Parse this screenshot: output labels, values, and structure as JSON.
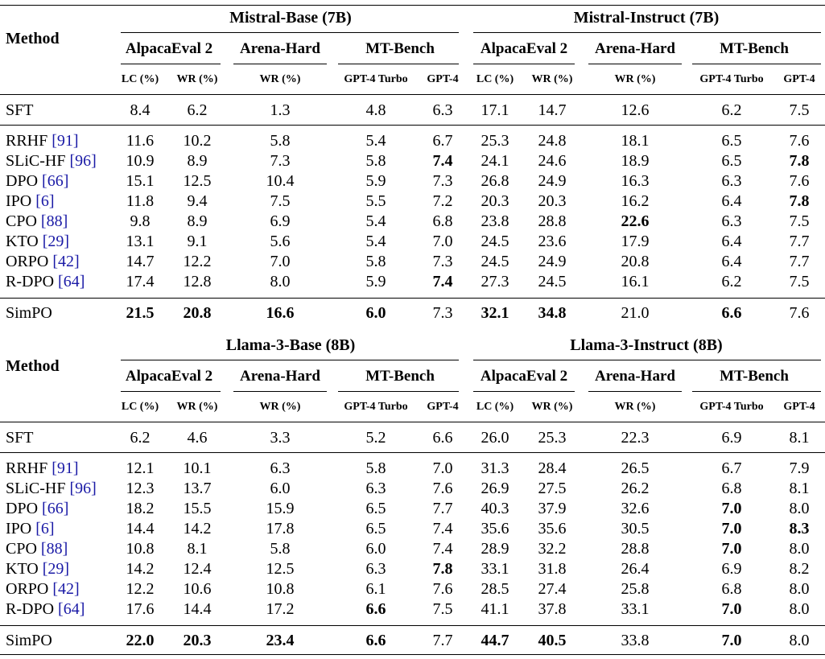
{
  "column_subheaders": [
    "LC (%)",
    "WR (%)",
    "WR (%)",
    "GPT-4 Turbo",
    "GPT-4",
    "LC (%)",
    "WR (%)",
    "WR (%)",
    "GPT-4 Turbo",
    "GPT-4"
  ],
  "benchmarks": {
    "alpaca": "AlpacaEval 2",
    "arena": "Arena-Hard",
    "mt": "MT-Bench"
  },
  "blocks": [
    {
      "method_header": "Method",
      "left_group": "Mistral-Base (7B)",
      "right_group": "Mistral-Instruct (7B)",
      "rows": [
        {
          "method": "SFT",
          "cite": "",
          "values": [
            "8.4",
            "6.2",
            "1.3",
            "4.8",
            "6.3",
            "17.1",
            "14.7",
            "12.6",
            "6.2",
            "7.5"
          ],
          "bold": []
        },
        {
          "method": "RRHF",
          "cite": "91",
          "values": [
            "11.6",
            "10.2",
            "5.8",
            "5.4",
            "6.7",
            "25.3",
            "24.8",
            "18.1",
            "6.5",
            "7.6"
          ],
          "bold": []
        },
        {
          "method": "SLiC-HF",
          "cite": "96",
          "values": [
            "10.9",
            "8.9",
            "7.3",
            "5.8",
            "7.4",
            "24.1",
            "24.6",
            "18.9",
            "6.5",
            "7.8"
          ],
          "bold": [
            4,
            9
          ]
        },
        {
          "method": "DPO",
          "cite": "66",
          "values": [
            "15.1",
            "12.5",
            "10.4",
            "5.9",
            "7.3",
            "26.8",
            "24.9",
            "16.3",
            "6.3",
            "7.6"
          ],
          "bold": []
        },
        {
          "method": "IPO",
          "cite": "6",
          "values": [
            "11.8",
            "9.4",
            "7.5",
            "5.5",
            "7.2",
            "20.3",
            "20.3",
            "16.2",
            "6.4",
            "7.8"
          ],
          "bold": [
            9
          ]
        },
        {
          "method": "CPO",
          "cite": "88",
          "values": [
            "9.8",
            "8.9",
            "6.9",
            "5.4",
            "6.8",
            "23.8",
            "28.8",
            "22.6",
            "6.3",
            "7.5"
          ],
          "bold": [
            7
          ]
        },
        {
          "method": "KTO",
          "cite": "29",
          "values": [
            "13.1",
            "9.1",
            "5.6",
            "5.4",
            "7.0",
            "24.5",
            "23.6",
            "17.9",
            "6.4",
            "7.7"
          ],
          "bold": []
        },
        {
          "method": "ORPO",
          "cite": "42",
          "values": [
            "14.7",
            "12.2",
            "7.0",
            "5.8",
            "7.3",
            "24.5",
            "24.9",
            "20.8",
            "6.4",
            "7.7"
          ],
          "bold": []
        },
        {
          "method": "R-DPO",
          "cite": "64",
          "values": [
            "17.4",
            "12.8",
            "8.0",
            "5.9",
            "7.4",
            "27.3",
            "24.5",
            "16.1",
            "6.2",
            "7.5"
          ],
          "bold": [
            4
          ]
        },
        {
          "method": "SimPO",
          "cite": "",
          "values": [
            "21.5",
            "20.8",
            "16.6",
            "6.0",
            "7.3",
            "32.1",
            "34.8",
            "21.0",
            "6.6",
            "7.6"
          ],
          "bold": [
            0,
            1,
            2,
            3,
            5,
            6,
            8
          ]
        }
      ]
    },
    {
      "method_header": "Method",
      "left_group": "Llama-3-Base (8B)",
      "right_group": "Llama-3-Instruct (8B)",
      "rows": [
        {
          "method": "SFT",
          "cite": "",
          "values": [
            "6.2",
            "4.6",
            "3.3",
            "5.2",
            "6.6",
            "26.0",
            "25.3",
            "22.3",
            "6.9",
            "8.1"
          ],
          "bold": []
        },
        {
          "method": "RRHF",
          "cite": "91",
          "values": [
            "12.1",
            "10.1",
            "6.3",
            "5.8",
            "7.0",
            "31.3",
            "28.4",
            "26.5",
            "6.7",
            "7.9"
          ],
          "bold": []
        },
        {
          "method": "SLiC-HF",
          "cite": "96",
          "values": [
            "12.3",
            "13.7",
            "6.0",
            "6.3",
            "7.6",
            "26.9",
            "27.5",
            "26.2",
            "6.8",
            "8.1"
          ],
          "bold": []
        },
        {
          "method": "DPO",
          "cite": "66",
          "values": [
            "18.2",
            "15.5",
            "15.9",
            "6.5",
            "7.7",
            "40.3",
            "37.9",
            "32.6",
            "7.0",
            "8.0"
          ],
          "bold": [
            8
          ]
        },
        {
          "method": "IPO",
          "cite": "6",
          "values": [
            "14.4",
            "14.2",
            "17.8",
            "6.5",
            "7.4",
            "35.6",
            "35.6",
            "30.5",
            "7.0",
            "8.3"
          ],
          "bold": [
            8,
            9
          ]
        },
        {
          "method": "CPO",
          "cite": "88",
          "values": [
            "10.8",
            "8.1",
            "5.8",
            "6.0",
            "7.4",
            "28.9",
            "32.2",
            "28.8",
            "7.0",
            "8.0"
          ],
          "bold": [
            8
          ]
        },
        {
          "method": "KTO",
          "cite": "29",
          "values": [
            "14.2",
            "12.4",
            "12.5",
            "6.3",
            "7.8",
            "33.1",
            "31.8",
            "26.4",
            "6.9",
            "8.2"
          ],
          "bold": [
            4
          ]
        },
        {
          "method": "ORPO",
          "cite": "42",
          "values": [
            "12.2",
            "10.6",
            "10.8",
            "6.1",
            "7.6",
            "28.5",
            "27.4",
            "25.8",
            "6.8",
            "8.0"
          ],
          "bold": []
        },
        {
          "method": "R-DPO",
          "cite": "64",
          "values": [
            "17.6",
            "14.4",
            "17.2",
            "6.6",
            "7.5",
            "41.1",
            "37.8",
            "33.1",
            "7.0",
            "8.0"
          ],
          "bold": [
            3,
            8
          ]
        },
        {
          "method": "SimPO",
          "cite": "",
          "values": [
            "22.0",
            "20.3",
            "23.4",
            "6.6",
            "7.7",
            "44.7",
            "40.5",
            "33.8",
            "7.0",
            "8.0"
          ],
          "bold": [
            0,
            1,
            2,
            3,
            5,
            6,
            8
          ]
        }
      ]
    }
  ]
}
